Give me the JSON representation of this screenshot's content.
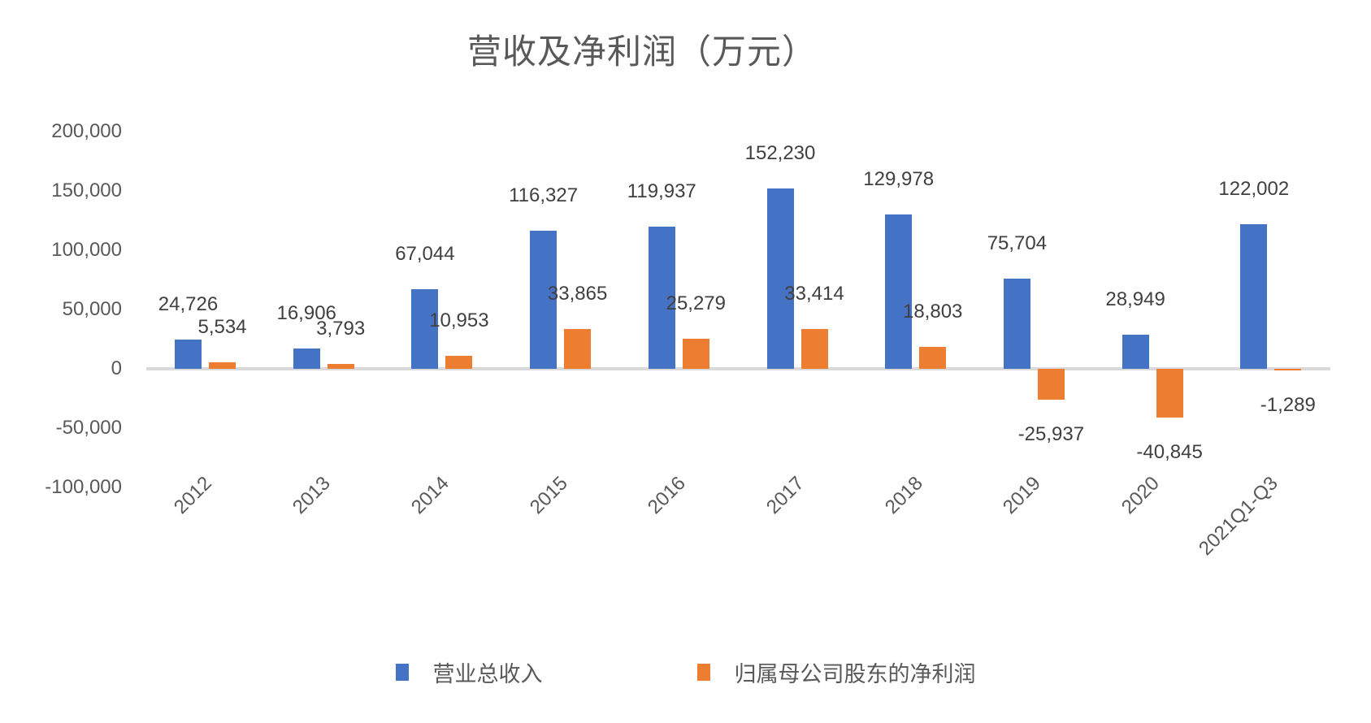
{
  "chart_data": {
    "type": "bar",
    "title": "营收及净利润（万元）",
    "categories": [
      "2012",
      "2013",
      "2014",
      "2015",
      "2016",
      "2017",
      "2018",
      "2019",
      "2020",
      "2021Q1-Q3"
    ],
    "series": [
      {
        "name": "营业总收入",
        "color": "#4472C4",
        "values": [
          24726,
          16906,
          67044,
          116327,
          119937,
          152230,
          129978,
          75704,
          28949,
          122002
        ]
      },
      {
        "name": "归属母公司股东的净利润",
        "color": "#ED7D31",
        "values": [
          5534,
          3793,
          10953,
          33865,
          25279,
          33414,
          18803,
          -25937,
          -40845,
          -1289
        ]
      }
    ],
    "data_labels": [
      "24,726",
      "16,906",
      "67,044",
      "116,327",
      "119,937",
      "152,230",
      "129,978",
      "75,704",
      "28,949",
      "122,002",
      "5,534",
      "3,793",
      "10,953",
      "33,865",
      "25,279",
      "33,414",
      "18,803",
      "-25,937",
      "-40,845",
      "-1,289"
    ],
    "y_axis": {
      "min": -100000,
      "max": 200000,
      "ticks": [
        {
          "label": "200,000",
          "value": 200000
        },
        {
          "label": "150,000",
          "value": 150000
        },
        {
          "label": "100,000",
          "value": 100000
        },
        {
          "label": "50,000",
          "value": 50000
        },
        {
          "label": "0",
          "value": 0
        },
        {
          "label": "-50,000",
          "value": -50000
        },
        {
          "label": "-100,000",
          "value": -100000
        }
      ]
    },
    "xlabel": "",
    "ylabel": "",
    "grid": false,
    "legend_position": "bottom",
    "colors": {
      "axis_line": "#D9D9D9",
      "title_text": "#595959",
      "axis_text": "#595959",
      "label_text": "#404040"
    }
  }
}
